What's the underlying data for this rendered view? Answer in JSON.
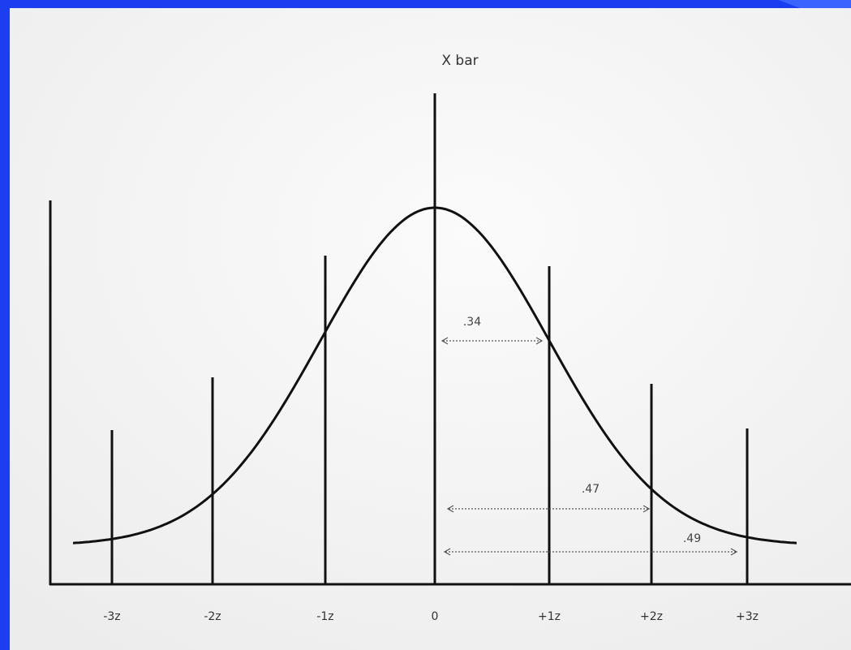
{
  "title": "X bar",
  "axis_labels": [
    "-3z",
    "-2z",
    "-1z",
    "0",
    "+1z",
    "+2z",
    "+3z"
  ],
  "annotations": [
    ".34",
    ".47",
    ".49"
  ]
}
